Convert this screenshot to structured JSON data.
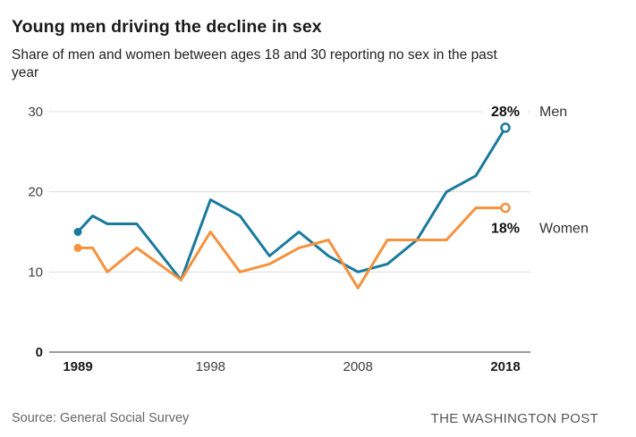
{
  "header": {
    "title": "Young men driving the decline in sex",
    "subtitle_lines": [
      "Share of men and women between ages 18 and 30 reporting no sex in the past",
      "year"
    ]
  },
  "footer": {
    "source": "Source: General Social Survey",
    "credit": "THE WASHINGTON POST"
  },
  "chart_data": {
    "type": "line",
    "title": "Young men driving the decline in sex",
    "subtitle": "Share of men and women between ages 18 and 30 reporting no sex in the past year",
    "x": [
      1989,
      1990,
      1991,
      1993,
      1996,
      1998,
      2000,
      2002,
      2004,
      2006,
      2008,
      2010,
      2012,
      2014,
      2016,
      2018
    ],
    "series": [
      {
        "name": "Men",
        "color": "#1a7a9e",
        "values": [
          15,
          17,
          16,
          16,
          9,
          19,
          17,
          12,
          15,
          12,
          10,
          11,
          14,
          20,
          22,
          28
        ],
        "end_value_label": "28%",
        "end_label_position": "above",
        "start_marker": "filled-dot",
        "end_marker": "open-circle"
      },
      {
        "name": "Women",
        "color": "#f6913d",
        "values": [
          13,
          13,
          10,
          13,
          9,
          15,
          10,
          11,
          13,
          14,
          8,
          14,
          14,
          14,
          18,
          18
        ],
        "end_value_label": "18%",
        "end_label_position": "below",
        "start_marker": "filled-dot",
        "end_marker": "open-circle"
      }
    ],
    "xticks": [
      {
        "year": 1989,
        "label": "1989",
        "bold": true
      },
      {
        "year": 1998,
        "label": "1998",
        "bold": false
      },
      {
        "year": 2008,
        "label": "2008",
        "bold": false
      },
      {
        "year": 2018,
        "label": "2018",
        "bold": true
      }
    ],
    "yticks": [
      {
        "value": 30,
        "label": "30",
        "bold": false
      },
      {
        "value": 20,
        "label": "20",
        "bold": false
      },
      {
        "value": 10,
        "label": "10",
        "bold": false
      },
      {
        "value": 0,
        "label": "0",
        "bold": true
      }
    ],
    "xlim": [
      1989,
      2018
    ],
    "ylim": [
      0,
      30
    ],
    "grid": "horizontal",
    "legend_position": "right-end-labels",
    "colors": {
      "grid": "#dcdcdc",
      "baseline": "#9b9b9b",
      "tick_text": "#404040",
      "tick_text_bold": "#1a1a1a",
      "end_value_text": "#111111",
      "series_name_text": "#333333"
    }
  }
}
